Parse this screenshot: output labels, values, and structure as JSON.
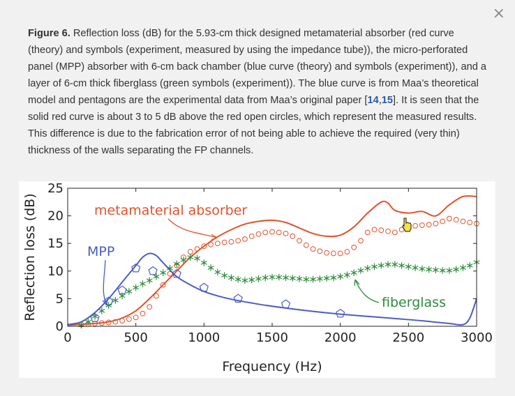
{
  "close_icon": "×",
  "caption": {
    "figure_label": "Figure 6.",
    "text_1": " Reflection loss (dB) for the 5.93-cm thick designed metamaterial absorber (red curve (theory) and symbols (experiment, measured by using the impedance tube)), the micro-perforated panel (MPP) absorber with 6-cm back chamber (blue curve (theory) and symbols (experiment)), and a layer of 6-cm thick fiberglass (green symbols (experiment)). The blue curve is from Maa’s theoretical model and pentagons are the experimental data from Maa’s original paper [",
    "ref_1": "14",
    "ref_sep": ",",
    "ref_2": "15",
    "text_2": "]. It is seen that the solid red curve is about 3 to 5 dB above the red open circles, which represent the measured results. This difference is due to the fabrication error of not being able to achieve the required (very thin) thickness of the walls separating the FP channels."
  },
  "chart_data": {
    "type": "line",
    "xlabel": "Frequency (Hz)",
    "ylabel": "Reflection loss (dB)",
    "xlim": [
      0,
      3000
    ],
    "ylim": [
      0,
      25
    ],
    "xticks": [
      0,
      500,
      1000,
      1500,
      2000,
      2500,
      3000
    ],
    "yticks": [
      0,
      5,
      10,
      15,
      20,
      25
    ],
    "grid": false,
    "annotations": [
      {
        "text": "metamaterial absorber",
        "color": "#e0522b"
      },
      {
        "text": "MPP",
        "color": "#4b5cc4"
      },
      {
        "text": "fiberglass",
        "color": "#2e8b3c"
      }
    ],
    "series": [
      {
        "kind": "theory-line",
        "color": "#e0522b",
        "x": [
          0,
          200,
          300,
          400,
          500,
          600,
          700,
          800,
          900,
          1000,
          1100,
          1200,
          1300,
          1400,
          1500,
          1600,
          1700,
          1800,
          1900,
          2000,
          2100,
          2200,
          2300,
          2350,
          2400,
          2500,
          2600,
          2700,
          2800,
          2900,
          3000
        ],
        "y": [
          0.2,
          0.5,
          0.8,
          1.5,
          2.8,
          5.0,
          7.5,
          10.0,
          12.5,
          14.5,
          16.2,
          17.5,
          18.5,
          19.0,
          19.2,
          18.8,
          17.8,
          16.8,
          16.3,
          16.5,
          18.0,
          20.5,
          22.5,
          22.3,
          21.0,
          20.5,
          20.8,
          20.0,
          22.0,
          23.5,
          23.5
        ]
      },
      {
        "kind": "measured-circles",
        "color": "#e0522b",
        "x": [
          100,
          150,
          200,
          250,
          300,
          350,
          400,
          450,
          500,
          550,
          600,
          650,
          700,
          750,
          800,
          850,
          900,
          950,
          1000,
          1050,
          1100,
          1150,
          1200,
          1250,
          1300,
          1350,
          1400,
          1450,
          1500,
          1550,
          1600,
          1650,
          1700,
          1750,
          1800,
          1850,
          1900,
          1950,
          2000,
          2050,
          2100,
          2150,
          2200,
          2250,
          2300,
          2350,
          2400,
          2450,
          2500,
          2550,
          2600,
          2650,
          2700,
          2750,
          2800,
          2850,
          2900,
          2950,
          3000
        ],
        "y": [
          0.3,
          0.4,
          0.5,
          0.6,
          0.7,
          0.8,
          1.0,
          1.3,
          1.6,
          2.3,
          3.5,
          5.5,
          7.5,
          9.5,
          11.0,
          12.5,
          13.5,
          14.0,
          14.5,
          14.8,
          15.0,
          15.2,
          15.3,
          15.5,
          15.8,
          16.3,
          16.7,
          17.0,
          17.1,
          17.0,
          16.8,
          16.3,
          15.5,
          14.7,
          14.0,
          13.6,
          13.3,
          13.2,
          13.2,
          13.5,
          14.3,
          15.5,
          17.0,
          17.5,
          17.4,
          17.2,
          17.0,
          17.5,
          18.0,
          18.2,
          18.3,
          18.4,
          18.6,
          19.0,
          19.5,
          19.3,
          19.0,
          18.8,
          18.6
        ]
      },
      {
        "kind": "theory-line",
        "color": "#4b5cc4",
        "x": [
          0,
          100,
          200,
          300,
          400,
          500,
          550,
          600,
          650,
          700,
          800,
          900,
          1000,
          1100,
          1200,
          1400,
          1600,
          1800,
          2000,
          2200,
          2400,
          2600,
          2800,
          2900,
          2950,
          3000
        ],
        "y": [
          0.3,
          0.8,
          2.5,
          5.0,
          8.0,
          11.0,
          12.5,
          13.2,
          12.8,
          11.5,
          9.0,
          7.5,
          6.3,
          5.5,
          4.9,
          4.0,
          3.3,
          2.7,
          2.2,
          1.8,
          1.4,
          1.0,
          0.5,
          0.3,
          1.5,
          5.0
        ]
      },
      {
        "kind": "measured-pentagons",
        "color": "#4b5cc4",
        "x": [
          200,
          300,
          400,
          500,
          625,
          800,
          1000,
          1250,
          1600,
          2000
        ],
        "y": [
          1.5,
          4.5,
          6.5,
          10.5,
          10.0,
          9.5,
          7.0,
          5.0,
          4.0,
          2.3
        ]
      },
      {
        "kind": "measured-stars",
        "color": "#2e8b3c",
        "x": [
          100,
          150,
          200,
          250,
          300,
          350,
          400,
          450,
          500,
          550,
          600,
          650,
          700,
          750,
          800,
          850,
          900,
          950,
          1000,
          1050,
          1100,
          1150,
          1200,
          1250,
          1300,
          1350,
          1400,
          1450,
          1500,
          1550,
          1600,
          1650,
          1700,
          1750,
          1800,
          1850,
          1900,
          1950,
          2000,
          2050,
          2100,
          2150,
          2200,
          2250,
          2300,
          2350,
          2400,
          2450,
          2500,
          2550,
          2600,
          2650,
          2700,
          2750,
          2800,
          2850,
          2900,
          2950,
          3000
        ],
        "y": [
          0.2,
          0.8,
          1.8,
          2.8,
          3.8,
          4.7,
          5.5,
          6.3,
          7.0,
          7.7,
          8.3,
          9.0,
          9.7,
          10.5,
          11.3,
          12.0,
          12.5,
          12.3,
          11.5,
          10.6,
          9.8,
          9.2,
          8.8,
          8.5,
          8.3,
          8.4,
          8.6,
          8.8,
          8.9,
          8.9,
          8.8,
          8.7,
          8.6,
          8.5,
          8.5,
          8.6,
          8.7,
          8.8,
          9.0,
          9.3,
          9.7,
          10.1,
          10.5,
          10.8,
          11.0,
          11.2,
          11.2,
          11.0,
          10.8,
          10.6,
          10.4,
          10.3,
          10.2,
          10.1,
          10.1,
          10.3,
          10.6,
          11.0,
          11.6
        ]
      }
    ]
  }
}
